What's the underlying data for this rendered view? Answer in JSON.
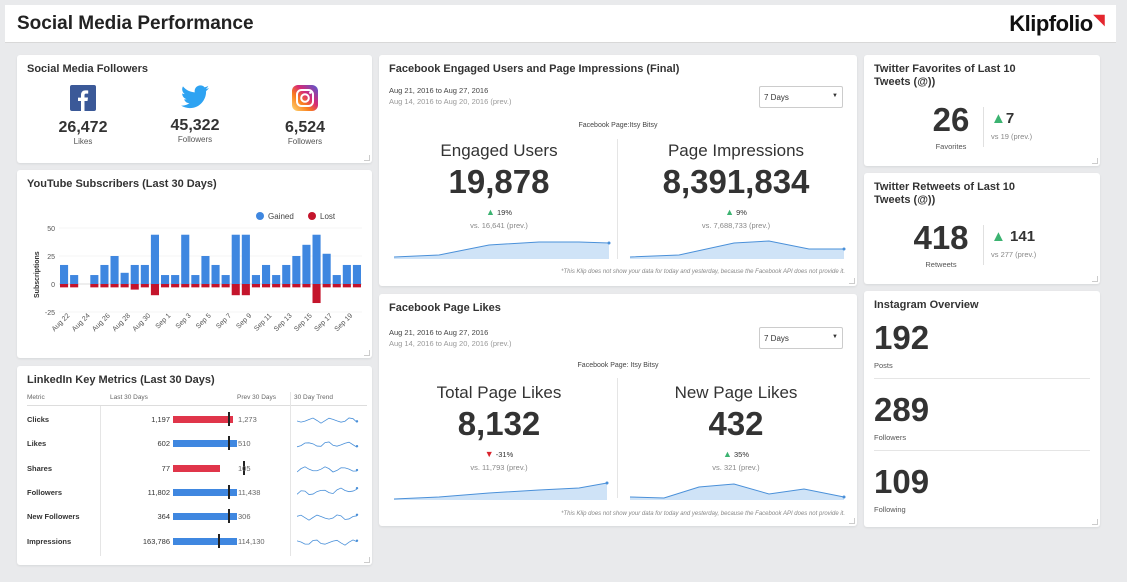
{
  "header": {
    "title": "Social Media Performance",
    "logo": "Klipfolio"
  },
  "followers": {
    "title": "Social Media Followers",
    "items": [
      {
        "icon": "facebook-icon",
        "value": "26,472",
        "label": "Likes",
        "color": "#3b5998"
      },
      {
        "icon": "twitter-icon",
        "value": "45,322",
        "label": "Followers",
        "color": "#2ea3f2"
      },
      {
        "icon": "instagram-icon",
        "value": "6,524",
        "label": "Followers",
        "color": "#d62976"
      }
    ]
  },
  "youtube": {
    "title": "YouTube Subscribers (Last 30 Days)",
    "legend_gained": "Gained",
    "legend_lost": "Lost",
    "ylabel": "Subscriptions",
    "yticks": [
      "50",
      "25",
      "0",
      "-25"
    ],
    "xticks": [
      "Aug 22",
      "Aug 24",
      "Aug 26",
      "Aug 28",
      "Aug 30",
      "Sep 1",
      "Sep 3",
      "Sep 5",
      "Sep 7",
      "Sep 9",
      "Sep 11",
      "Sep 13",
      "Sep 15",
      "Sep 17",
      "Sep 19"
    ]
  },
  "chart_data": {
    "type": "bar",
    "title": "YouTube Subscribers (Last 30 Days)",
    "ylabel": "Subscriptions",
    "ylim": [
      -25,
      50
    ],
    "legend": "top-right",
    "series": [
      {
        "name": "Gained",
        "color": "#3f87e0",
        "values": [
          17,
          8,
          0,
          8,
          17,
          25,
          10,
          17,
          17,
          44,
          8,
          8,
          44,
          8,
          25,
          17,
          8,
          44,
          44,
          8,
          17,
          8,
          17,
          25,
          35,
          44,
          27,
          8,
          17,
          17
        ]
      },
      {
        "name": "Lost",
        "color": "#c4152c",
        "values": [
          -3,
          -3,
          0,
          -3,
          -3,
          -3,
          -3,
          -5,
          -3,
          -10,
          -3,
          -3,
          -3,
          -3,
          -3,
          -3,
          -3,
          -10,
          -10,
          -3,
          -3,
          -3,
          -3,
          -3,
          -3,
          -17,
          -3,
          -3,
          -3,
          -3
        ]
      }
    ]
  },
  "linkedin": {
    "title": "LinkedIn Key Metrics (Last 30 Days)",
    "headers": [
      "Metric",
      "Last 30 Days",
      "Prev 30 Days",
      "30 Day Trend"
    ],
    "rows": [
      {
        "metric": "Clicks",
        "last": "1,197",
        "prev": "1,273",
        "bar": 0.94,
        "color": "#e0354a"
      },
      {
        "metric": "Likes",
        "last": "602",
        "prev": "510",
        "bar": 1.0,
        "color": "#3f87e0"
      },
      {
        "metric": "Shares",
        "last": "77",
        "prev": "105",
        "bar": 0.73,
        "color": "#e0354a"
      },
      {
        "metric": "Followers",
        "last": "11,802",
        "prev": "11,438",
        "bar": 1.0,
        "color": "#3f87e0"
      },
      {
        "metric": "New Followers",
        "last": "364",
        "prev": "306",
        "bar": 1.0,
        "color": "#3f87e0"
      },
      {
        "metric": "Impressions",
        "last": "163,786",
        "prev": "114,130",
        "bar": 1.0,
        "color": "#3f87e0"
      }
    ]
  },
  "fb_engaged": {
    "title": "Facebook Engaged Users and Page Impressions (Final)",
    "date_current": "Aug 21, 2016 to Aug 27, 2016",
    "date_prev": "Aug 14, 2016 to Aug 20, 2016 (prev.)",
    "select_value": "7 Days",
    "page_label": "Facebook Page:Itsy Bitsy",
    "left": {
      "label": "Engaged Users",
      "value": "19,878",
      "delta": "19%",
      "prev": "vs. 16,641 (prev.)",
      "direction": "up"
    },
    "right": {
      "label": "Page Impressions",
      "value": "8,391,834",
      "delta": "9%",
      "prev": "vs. 7,688,733 (prev.)",
      "direction": "up"
    },
    "note": "*This Klip does not show your data for today and yesterday, because the Facebook API does not provide it."
  },
  "fb_likes": {
    "title": "Facebook Page Likes",
    "date_current": "Aug 21, 2016 to Aug 27, 2016",
    "date_prev": "Aug 14, 2016 to Aug 20, 2016 (prev.)",
    "select_value": "7 Days",
    "page_label": "Facebook Page: Itsy Bitsy",
    "left": {
      "label": "Total Page Likes",
      "value": "8,132",
      "delta": "-31%",
      "prev": "vs. 11,793 (prev.)",
      "direction": "down"
    },
    "right": {
      "label": "New Page Likes",
      "value": "432",
      "delta": "35%",
      "prev": "vs. 321 (prev.)",
      "direction": "up"
    },
    "note": "*This Klip does not show your data for today and yesterday, because the Facebook API does not provide it."
  },
  "tw_fav": {
    "title": "Twitter Favorites of Last 10 Tweets (@))",
    "value": "26",
    "value_label": "Favorites",
    "delta": "7",
    "prev": "vs 19 (prev.)"
  },
  "tw_rt": {
    "title": "Twitter Retweets of Last 10 Tweets (@))",
    "value": "418",
    "value_label": "Retweets",
    "delta": "141",
    "prev": "vs 277 (prev.)"
  },
  "instagram": {
    "title": "Instagram Overview",
    "stats": [
      {
        "value": "192",
        "label": "Posts"
      },
      {
        "value": "289",
        "label": "Followers"
      },
      {
        "value": "109",
        "label": "Following"
      }
    ]
  },
  "colors": {
    "up": "#3cb371",
    "down": "#d9232d",
    "gained": "#3f87e0",
    "lost": "#c4152c",
    "area": "#cfe3f7",
    "line": "#4a90d9"
  }
}
